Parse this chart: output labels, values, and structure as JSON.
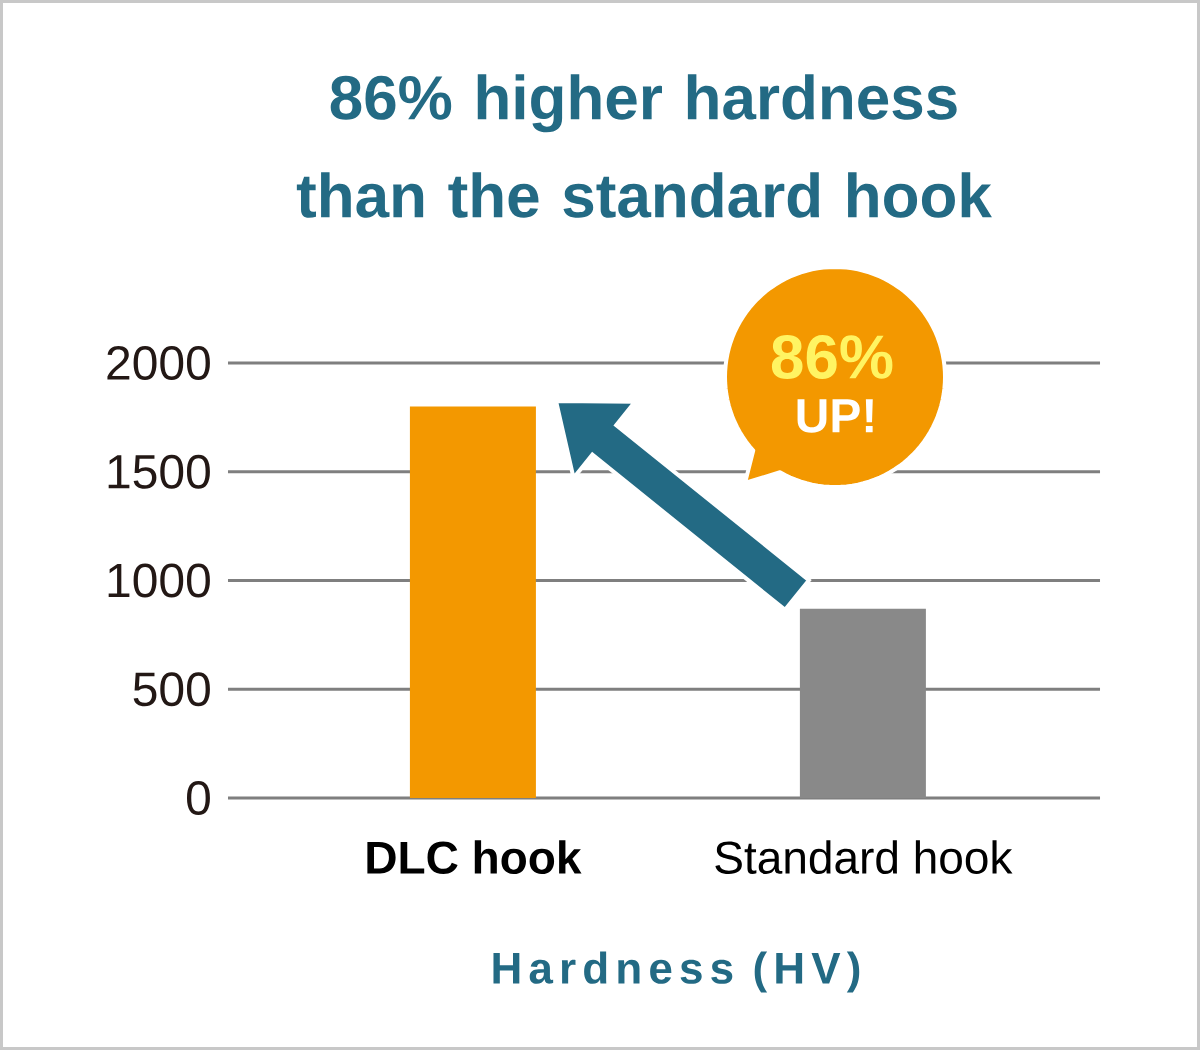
{
  "chart_data": {
    "type": "bar",
    "title": "86% higher hardness than the standard hook",
    "categories": [
      "DLC hook",
      "Standard hook"
    ],
    "values": [
      1800,
      870
    ],
    "colors": [
      "#f39800",
      "#898989"
    ],
    "xlabel": "Hardness (HV)",
    "ylim": [
      0,
      2000
    ],
    "yticks": [
      0,
      500,
      1000,
      1500,
      2000
    ],
    "grid": "y",
    "annotations": [
      "86%",
      "UP!"
    ]
  }
}
